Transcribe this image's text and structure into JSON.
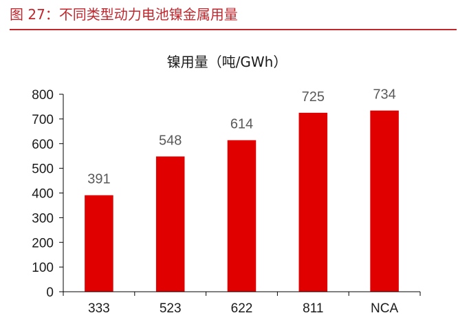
{
  "figure": {
    "number_label": "图 27：",
    "caption": "不同类型动力电池镍金属用量"
  },
  "chart_data": {
    "type": "bar",
    "title": "镍用量（吨/GWh）",
    "categories": [
      "333",
      "523",
      "622",
      "811",
      "NCA"
    ],
    "values": [
      391,
      548,
      614,
      725,
      734
    ],
    "data_labels": [
      "391",
      "548",
      "614",
      "725",
      "734"
    ],
    "ylim": [
      0,
      800
    ],
    "y_ticks": [
      0,
      100,
      200,
      300,
      400,
      500,
      600,
      700,
      800
    ],
    "xlabel": "",
    "ylabel": "",
    "grid": false,
    "legend": "none",
    "bar_color": "#e00000"
  },
  "colors": {
    "accent": "#c0272d",
    "bar": "#e00000",
    "axis": "#000000"
  }
}
